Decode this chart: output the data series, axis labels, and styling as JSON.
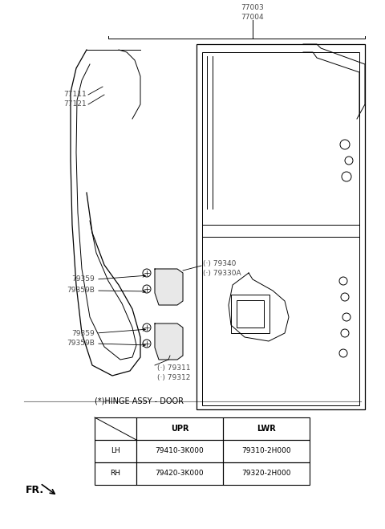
{
  "bg_color": "#ffffff",
  "line_color": "#000000",
  "label_color": "#4a4a4a",
  "fig_width": 4.8,
  "fig_height": 6.59,
  "dpi": 100,
  "title_parts": [
    "77003",
    "77004"
  ],
  "label_77111": "77111",
  "label_77121": "77121",
  "labels_upper_hinge": [
    "(·) 79340",
    "(·) 79330A"
  ],
  "labels_upper_bracket": [
    "79359",
    "79359B"
  ],
  "labels_lower_hinge": [
    "79359",
    "79359B"
  ],
  "labels_lower_parts": [
    "(·) 79311",
    "(·) 79312"
  ],
  "hinge_table_title": "(*)HINGE ASSY - DOOR",
  "table_headers": [
    "",
    "UPR",
    "LWR"
  ],
  "table_rows": [
    [
      "LH",
      "79410-3K000",
      "79310-2H000"
    ],
    [
      "RH",
      "79420-3K000",
      "79320-2H000"
    ]
  ],
  "fr_label": "FR.",
  "note_star": "(*)"
}
